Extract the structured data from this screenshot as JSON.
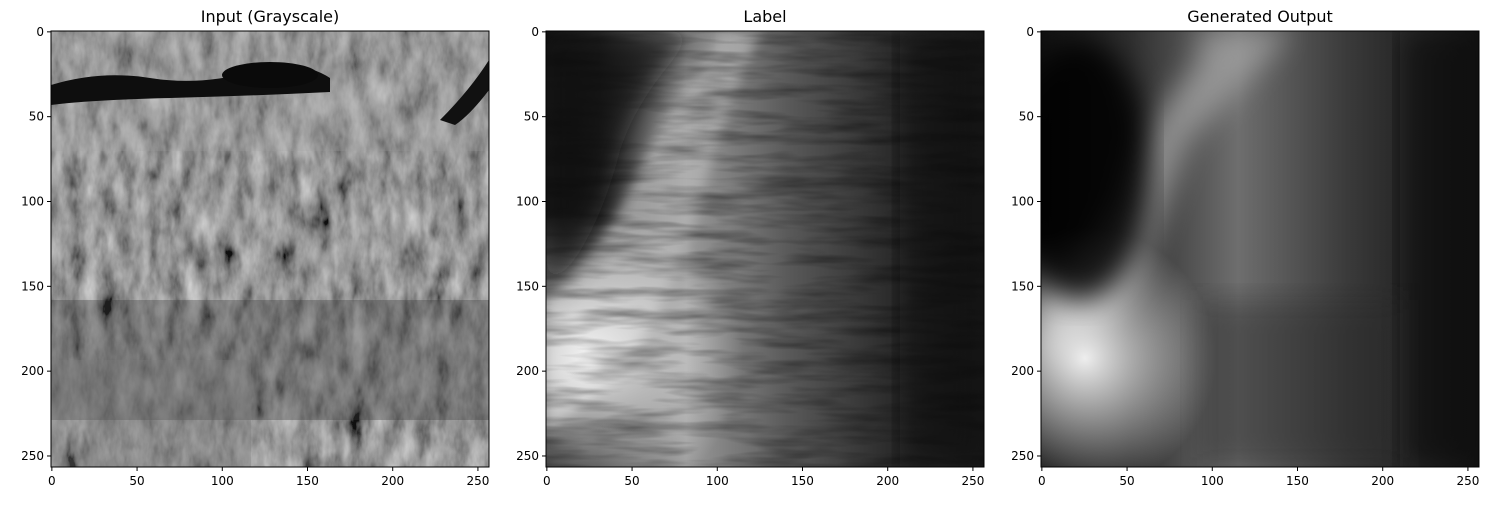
{
  "figure": {
    "panels": [
      {
        "title": "Input (Grayscale)",
        "image_kind": "grayscale satellite image",
        "x_ticks": [
          "0",
          "50",
          "100",
          "150",
          "200",
          "250"
        ],
        "y_ticks": [
          "0",
          "50",
          "100",
          "150",
          "200",
          "250"
        ]
      },
      {
        "title": "Label",
        "image_kind": "grayscale elevation map",
        "x_ticks": [
          "0",
          "50",
          "100",
          "150",
          "200",
          "250"
        ],
        "y_ticks": [
          "0",
          "50",
          "100",
          "150",
          "200",
          "250"
        ]
      },
      {
        "title": "Generated Output",
        "image_kind": "grayscale predicted elevation map",
        "x_ticks": [
          "0",
          "50",
          "100",
          "150",
          "200",
          "250"
        ],
        "y_ticks": [
          "0",
          "50",
          "100",
          "150",
          "200",
          "250"
        ]
      }
    ]
  }
}
